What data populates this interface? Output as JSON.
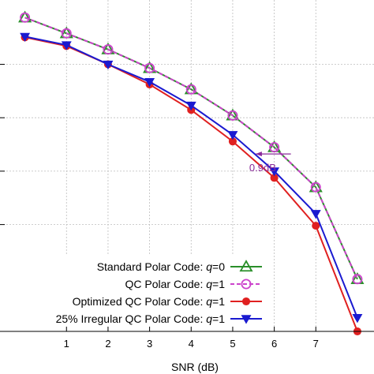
{
  "chart_data": {
    "type": "line",
    "title": "",
    "xlabel": "SNR (dB)",
    "ylabel": "",
    "xlim": [
      -0.6,
      8.4
    ],
    "x_ticks": [
      1,
      2,
      3,
      4,
      5,
      6,
      7
    ],
    "grid": true,
    "log_y": true,
    "ylim": [
      1e-06,
      1.6
    ],
    "legend_position": "bottom-right",
    "series": [
      {
        "name": "Standard Polar Code: ",
        "param": "q",
        "param_value": "=0",
        "color": "#2a8f2a",
        "marker": "triangle-up",
        "line_style": "solid",
        "x": [
          0,
          1,
          2,
          3,
          4,
          5,
          6,
          7,
          8
        ],
        "y": [
          0.75,
          0.38,
          0.19,
          0.085,
          0.034,
          0.011,
          0.0028,
          0.0005,
          9.5e-06
        ]
      },
      {
        "name": "QC Polar Code: ",
        "param": "q",
        "param_value": "=1",
        "color": "#cc44cc",
        "marker": "circle-open",
        "line_style": "dashed",
        "x": [
          0,
          1,
          2,
          3,
          4,
          5,
          6,
          7,
          8
        ],
        "y": [
          0.75,
          0.38,
          0.19,
          0.085,
          0.034,
          0.011,
          0.0028,
          0.0005,
          9.5e-06
        ]
      },
      {
        "name": "Optimized QC Polar Code: ",
        "param": "q",
        "param_value": "=1",
        "color": "#e02020",
        "marker": "circle-filled",
        "line_style": "solid",
        "x": [
          0,
          1,
          2,
          3,
          4,
          5,
          6,
          7,
          8
        ],
        "y": [
          0.32,
          0.22,
          0.1,
          0.042,
          0.014,
          0.0036,
          0.00075,
          9.5e-05,
          1e-06
        ]
      },
      {
        "name": "25% Irregular QC Polar Code: ",
        "param": "q",
        "param_value": "=1",
        "color": "#1a1ad0",
        "marker": "triangle-down",
        "line_style": "solid",
        "x": [
          0,
          1,
          2,
          3,
          4,
          5,
          6,
          7,
          8
        ],
        "y": [
          0.33,
          0.23,
          0.1,
          0.047,
          0.017,
          0.0048,
          0.001,
          0.00016,
          1.8e-06
        ]
      }
    ],
    "annotations": [
      {
        "text": "0.9dB",
        "color": "#8a2a9a",
        "x_from": 5.55,
        "x_to": 6.4,
        "y": 0.0021
      }
    ]
  }
}
